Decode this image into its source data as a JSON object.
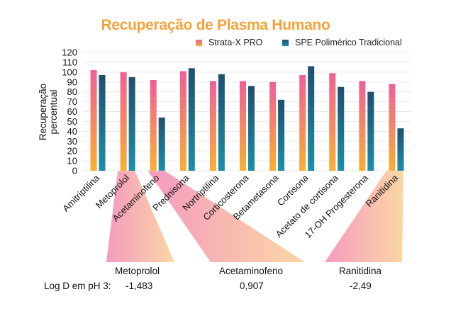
{
  "title": "Recuperação de Plasma Humano",
  "colors": {
    "title": "#f4a33b",
    "strata_top": "#ef5f97",
    "strata_bottom": "#f8b032",
    "spe_top": "#1e4f6e",
    "spe_bottom": "#1b8fa8",
    "callout_pink": "#f59ac0",
    "callout_orange": "#fbd7a3"
  },
  "chart_data": {
    "type": "bar",
    "title": "Recuperação de Plasma Humano",
    "ylabel": "Recuperação percentual",
    "xlabel": "",
    "ylim": [
      0,
      120
    ],
    "yticks": [
      0,
      10,
      20,
      30,
      40,
      50,
      60,
      70,
      80,
      90,
      100,
      110,
      120
    ],
    "grid": true,
    "legend_position": "top-right",
    "categories": [
      "Amitriptilina",
      "Metoprolol",
      "Acetaminofeno",
      "Prednisona",
      "Nortriptilina",
      "Corticosterona",
      "Betametasona",
      "Cortisona",
      "Acetato de cortisona",
      "17-OH Progesterona",
      "Ranitidina"
    ],
    "series": [
      {
        "name": "Strata-X PRO",
        "values": [
          102,
          100,
          92,
          101,
          91,
          91,
          90,
          97,
          99,
          91,
          88
        ]
      },
      {
        "name": "SPE Polimérico Tradicional",
        "values": [
          97,
          95,
          54,
          104,
          98,
          86,
          72,
          106,
          85,
          80,
          43
        ]
      }
    ]
  },
  "callouts": {
    "log_d_label": "Log D em pH 3:",
    "items": [
      {
        "name": "Metoprolol",
        "log_d": "-1,483"
      },
      {
        "name": "Acetaminofeno",
        "log_d": "0,907"
      },
      {
        "name": "Ranitidina",
        "log_d": "-2,49"
      }
    ]
  }
}
